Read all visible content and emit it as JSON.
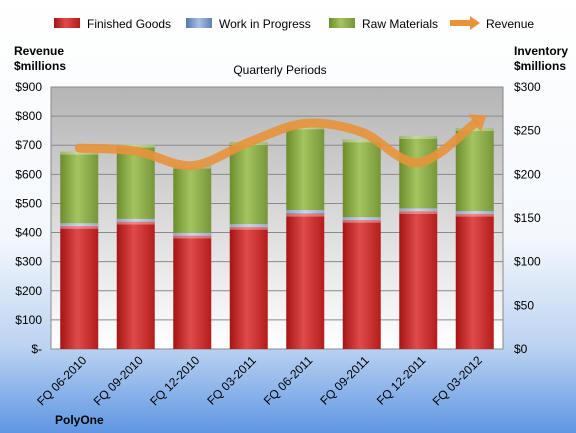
{
  "chart_data": {
    "type": "bar",
    "stacked": true,
    "company": "PolyOne",
    "subtitle": "Quarterly Periods",
    "y_left_label": [
      "Revenue",
      "$millions"
    ],
    "y_right_label": [
      "Inventory",
      "$millions"
    ],
    "categories": [
      "FQ 06-2010",
      "FQ 09-2010",
      "FQ 12-2010",
      "FQ 03-2011",
      "FQ 06-2011",
      "FQ 09-2011",
      "FQ 12-2011",
      "FQ 03-2012"
    ],
    "y_left_ticks": [
      "$-",
      "$100",
      "$200",
      "$300",
      "$400",
      "$500",
      "$600",
      "$700",
      "$800",
      "$900"
    ],
    "y_right_ticks": [
      "$0",
      "$50",
      "$100",
      "$150",
      "$200",
      "$250",
      "$300"
    ],
    "ylim_left": [
      0,
      900
    ],
    "ylim_right": [
      0,
      300
    ],
    "series": [
      {
        "name": "Finished Goods",
        "axis": "right",
        "color": "#cc2222",
        "values": [
          141,
          146,
          130,
          140,
          155,
          148,
          158,
          155
        ]
      },
      {
        "name": "Work in Progress",
        "axis": "right",
        "color": "#7799cc",
        "values": [
          3,
          3,
          3,
          3,
          4,
          3,
          3,
          3
        ]
      },
      {
        "name": "Raw Materials",
        "axis": "right",
        "color": "#88aa44",
        "values": [
          82,
          85,
          77,
          94,
          96,
          89,
          83,
          95
        ]
      },
      {
        "name": "Revenue",
        "axis": "left",
        "type": "line",
        "color": "#e8923a",
        "values": [
          690,
          680,
          630,
          710,
          775,
          745,
          640,
          775
        ]
      }
    ],
    "grid": true,
    "legend": "top"
  }
}
